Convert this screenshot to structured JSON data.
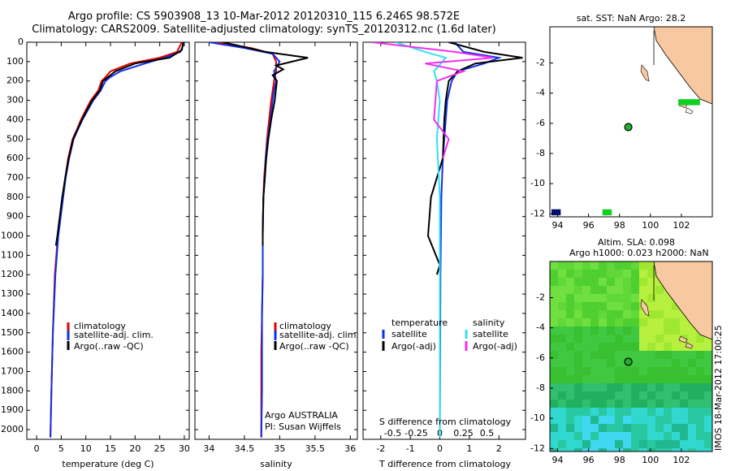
{
  "header": {
    "line1": "Argo profile: CS 5903908_13 10-Mar-2012 20120310_115 6.246S 98.572E",
    "line2": "Climatology: CARS2009. Satellite-adjusted climatology: synTS_20120312.nc (1.6d later)"
  },
  "colors": {
    "clim": "#e00000",
    "sat": "#1030e0",
    "argo": "#000000",
    "cyan": "#30e0f0",
    "magenta": "#f030f0",
    "land": "#f8c8a0",
    "sstgreen": "#10d020",
    "navy": "#001070"
  },
  "chart_data": [
    {
      "id": "temp",
      "type": "line",
      "xlabel": "temperature (deg C)",
      "xlim": [
        -2,
        31
      ],
      "ylim": [
        0,
        2050
      ],
      "xticks": [
        0,
        5,
        10,
        15,
        20,
        25,
        30
      ],
      "yticks": [
        0,
        100,
        200,
        300,
        400,
        500,
        600,
        700,
        800,
        900,
        1000,
        1100,
        1200,
        1300,
        1400,
        1500,
        1600,
        1700,
        1800,
        1900,
        2000
      ],
      "legend": [
        "climatology",
        "satellite-adj. clim.",
        "Argo(..raw -QC)"
      ],
      "series": [
        {
          "name": "climatology",
          "color_key": "clim",
          "x": [
            29.5,
            28.5,
            25,
            19,
            15,
            14,
            13.2,
            12.5,
            11,
            10,
            9,
            8.2,
            7.3,
            6.4,
            5.8,
            5.3,
            4.8,
            4.3,
            3.7,
            3.3,
            3.0,
            2.8
          ],
          "y": [
            0,
            50,
            80,
            110,
            150,
            180,
            200,
            250,
            300,
            350,
            400,
            450,
            500,
            600,
            700,
            800,
            900,
            1000,
            1200,
            1500,
            1800,
            2040
          ]
        },
        {
          "name": "satellite-adj. clim.",
          "color_key": "sat",
          "x": [
            30,
            29.2,
            26,
            22,
            17,
            15,
            14,
            13,
            11.5,
            10.4,
            9.3,
            8.4,
            7.5,
            6.6,
            5.9,
            5.4,
            4.9,
            4.4,
            3.8,
            3.3,
            3.0,
            2.8
          ],
          "y": [
            0,
            50,
            80,
            110,
            150,
            180,
            200,
            250,
            300,
            350,
            400,
            450,
            500,
            600,
            700,
            800,
            900,
            1000,
            1200,
            1500,
            1800,
            2040
          ]
        },
        {
          "name": "Argo(..raw -QC)",
          "color_key": "argo",
          "x": [
            29.8,
            29.5,
            27,
            20,
            16,
            14.5,
            13.5,
            12.8,
            11.3,
            10.2,
            9.2,
            8.3,
            7.4,
            6.5,
            5.8,
            5.2,
            4.7,
            4.2,
            3.9
          ],
          "y": [
            0,
            40,
            80,
            110,
            150,
            180,
            200,
            250,
            300,
            350,
            400,
            450,
            500,
            600,
            700,
            800,
            900,
            1000,
            1050
          ]
        }
      ]
    },
    {
      "id": "sal",
      "type": "line",
      "xlabel": "salinity",
      "xlim": [
        33.8,
        36.1
      ],
      "ylim": [
        0,
        2050
      ],
      "xticks": [
        34,
        34.5,
        35,
        35.5,
        36
      ],
      "legend": [
        "climatology",
        "satellite-adj. clim.",
        "Argo(..raw -QC)"
      ],
      "annotation": [
        "Argo AUSTRALIA",
        "PI: Susan Wijffels"
      ],
      "series": [
        {
          "name": "climatology",
          "color_key": "clim",
          "x": [
            34.1,
            34.6,
            34.9,
            34.95,
            34.95,
            34.92,
            34.9,
            34.88,
            34.85,
            34.82,
            34.8,
            34.78,
            34.77,
            34.76,
            34.76,
            34.75,
            34.74,
            34.74,
            34.74,
            34.74
          ],
          "y": [
            0,
            30,
            60,
            100,
            150,
            200,
            250,
            300,
            400,
            500,
            600,
            700,
            800,
            1000,
            1200,
            1400,
            1600,
            1800,
            2000,
            2040
          ]
        },
        {
          "name": "satellite-adj. clim.",
          "color_key": "sat",
          "x": [
            34.0,
            34.5,
            34.9,
            35.0,
            34.92,
            34.95,
            34.92,
            34.9,
            34.87,
            34.83,
            34.8,
            34.79,
            34.77,
            34.76,
            34.76,
            34.75,
            34.75,
            34.75,
            34.74
          ],
          "y": [
            0,
            30,
            60,
            100,
            150,
            200,
            250,
            300,
            400,
            500,
            600,
            700,
            800,
            1000,
            1200,
            1400,
            1600,
            1800,
            2040
          ]
        },
        {
          "name": "Argo(..raw -QC)",
          "color_key": "argo",
          "x": [
            34.2,
            34.8,
            35.4,
            34.95,
            35.05,
            34.9,
            34.96,
            34.93,
            34.88,
            34.84,
            34.81,
            34.79,
            34.77,
            34.76,
            34.76
          ],
          "y": [
            0,
            50,
            80,
            120,
            140,
            170,
            200,
            300,
            400,
            500,
            600,
            700,
            800,
            950,
            1050
          ]
        }
      ]
    },
    {
      "id": "diff",
      "type": "line",
      "xlabel": "T difference from climatology",
      "xlabel_top": "S difference from climatology",
      "xlim": [
        -2.6,
        2.9
      ],
      "ylim": [
        0,
        2050
      ],
      "xticks": [
        -2,
        -1,
        0,
        1,
        2
      ],
      "xticks_top": [
        "-0.5",
        "-0.25",
        "0",
        "0.25",
        "0.5"
      ],
      "legend_left": {
        "title": "temperature",
        "items": [
          "satellite",
          "Argo(-adj)"
        ]
      },
      "legend_right": {
        "title": "salinity",
        "items": [
          "satellite",
          "Argo(-adj)"
        ]
      },
      "series": [
        {
          "name": "T satellite",
          "color_key": "sat",
          "x": [
            0.5,
            0.8,
            2.0,
            1.5,
            0.6,
            0.4,
            0.25,
            0.2,
            0.1,
            0.05,
            0.02,
            0
          ],
          "y": [
            0,
            50,
            80,
            110,
            150,
            200,
            300,
            400,
            600,
            800,
            1200,
            2040
          ]
        },
        {
          "name": "T Argo(-adj)",
          "color_key": "argo",
          "x": [
            0.3,
            1.5,
            2.8,
            1.2,
            0.6,
            0.3,
            0.2,
            0.15,
            0.1,
            -0.3,
            -0.4,
            0.0,
            -0.1
          ],
          "y": [
            0,
            50,
            80,
            110,
            150,
            200,
            300,
            400,
            600,
            800,
            1000,
            1150,
            1200
          ]
        },
        {
          "name": "S satellite",
          "color_key": "cyan",
          "x": [
            -1.5,
            -0.5,
            0.2,
            -0.2,
            -0.1,
            0,
            -0.1,
            0,
            0,
            0
          ],
          "y": [
            0,
            50,
            80,
            150,
            200,
            300,
            500,
            800,
            1200,
            2040
          ]
        },
        {
          "name": "S Argo(-adj)",
          "color_key": "magenta",
          "x": [
            -2.3,
            0.5,
            1.8,
            -0.5,
            0.8,
            -0.1,
            -0.2,
            0.3,
            0.1
          ],
          "y": [
            0,
            50,
            80,
            110,
            150,
            200,
            400,
            500,
            600
          ]
        }
      ]
    }
  ],
  "map_sst": {
    "title": "sat. SST: NaN Argo: 28.2",
    "xticks": [
      "94",
      "96",
      "98",
      "100",
      "102"
    ],
    "yticks": [
      "-2",
      "-4",
      "-6",
      "-8",
      "-10",
      "-12"
    ],
    "lon": [
      93.5,
      104
    ],
    "lat": [
      -12.2,
      0.4
    ],
    "argo": {
      "lon": 98.57,
      "lat": -6.25
    },
    "patches": [
      {
        "lon": [
          101.8,
          103.2
        ],
        "lat": [
          -4.4,
          -4.8
        ],
        "color_key": "sstgreen"
      },
      {
        "lon": [
          93.6,
          94.2
        ],
        "lat": [
          -11.7,
          -12.1
        ],
        "color_key": "navy"
      },
      {
        "lon": [
          96.9,
          97.5
        ],
        "lat": [
          -11.7,
          -12.1
        ],
        "color_key": "sstgreen"
      }
    ]
  },
  "map_sla": {
    "title1": "Altim. SLA: 0.098",
    "title2": "Argo h1000: 0.023 h2000: NaN",
    "xticks": [
      "94",
      "96",
      "98",
      "100",
      "102"
    ],
    "yticks": [
      "-2",
      "-4",
      "-6",
      "-8",
      "-10",
      "-12"
    ],
    "lon": [
      93.5,
      104
    ],
    "lat": [
      -12.2,
      0.4
    ],
    "argo": {
      "lon": 98.57,
      "lat": -6.25
    }
  },
  "stamp": "IMOS 18-Mar-2012 17:00:25"
}
